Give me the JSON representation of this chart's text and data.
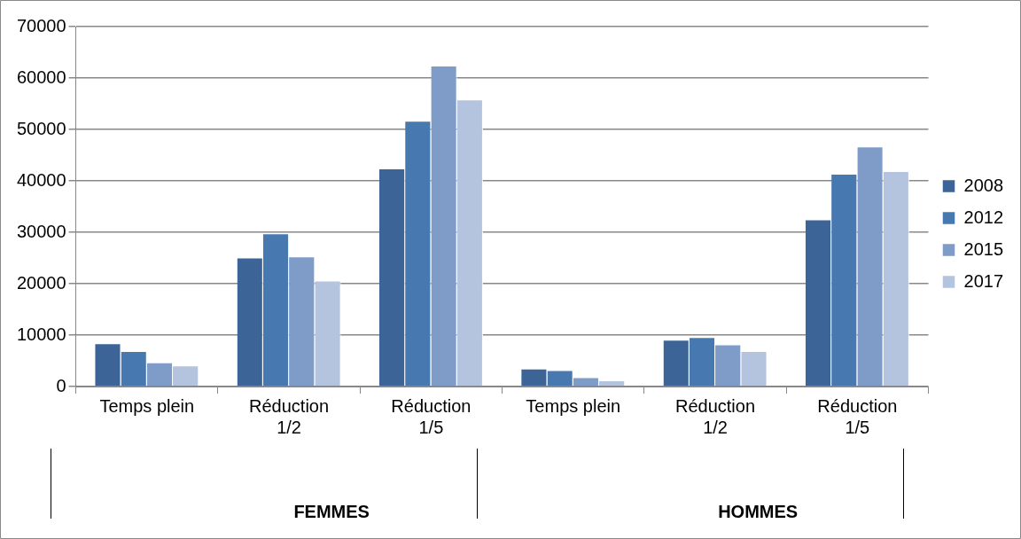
{
  "chart_data": {
    "type": "bar",
    "categories": [
      "Temps plein",
      "Réduction 1/2",
      "Réduction 1/5",
      "Temps plein",
      "Réduction 1/2",
      "Réduction 1/5"
    ],
    "series": [
      {
        "name": "2008",
        "color": "#3c6496",
        "values": [
          8400,
          25100,
          42400,
          3500,
          9100,
          32500
        ]
      },
      {
        "name": "2012",
        "color": "#4878b0",
        "values": [
          6900,
          29800,
          51700,
          3200,
          9600,
          41400
        ]
      },
      {
        "name": "2015",
        "color": "#7f9cc8",
        "values": [
          4700,
          25300,
          62400,
          1800,
          8200,
          46700
        ]
      },
      {
        "name": "2017",
        "color": "#b4c3de",
        "values": [
          4100,
          20600,
          55800,
          1200,
          6900,
          41900
        ]
      }
    ],
    "ylim": [
      0,
      70000
    ],
    "yticks": [
      0,
      10000,
      20000,
      30000,
      40000,
      50000,
      60000,
      70000
    ],
    "grid": "y",
    "legend": "right",
    "annotations": [
      "FEMMES",
      "HOMMES"
    ]
  }
}
